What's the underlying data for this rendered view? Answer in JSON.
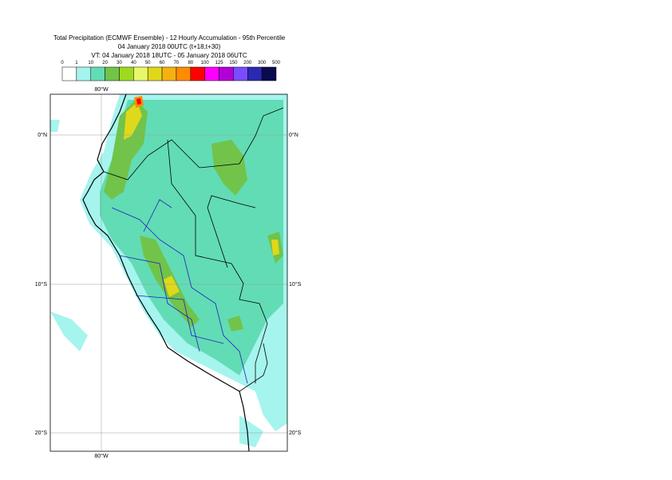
{
  "header": {
    "title": "Total Precipitation (ECMWF Ensemble) - 12 Hourly Accumulation - 95th Percentile",
    "subtitle": "04 January 2018 00UTC (t+18,t+30)",
    "valid_time": "VT: 04 January 2018 18UTC - 05 January 2018 06UTC"
  },
  "legend": {
    "levels": [
      0,
      1,
      10,
      20,
      30,
      40,
      50,
      60,
      70,
      80,
      100,
      125,
      150,
      200,
      300,
      500
    ],
    "colors": [
      "#ffffff",
      "#a6f4ee",
      "#62dcb4",
      "#71c34a",
      "#9edb1f",
      "#e8f76a",
      "#e0d81a",
      "#f5b20f",
      "#ff8c00",
      "#ff0000",
      "#ff00ff",
      "#b400d8",
      "#7b4cff",
      "#2a2ab0",
      "#0a0a50"
    ]
  },
  "grid_labels": {
    "lon": [
      "80°W"
    ],
    "lat": [
      "0°N",
      "10°S",
      "20°S"
    ]
  }
}
